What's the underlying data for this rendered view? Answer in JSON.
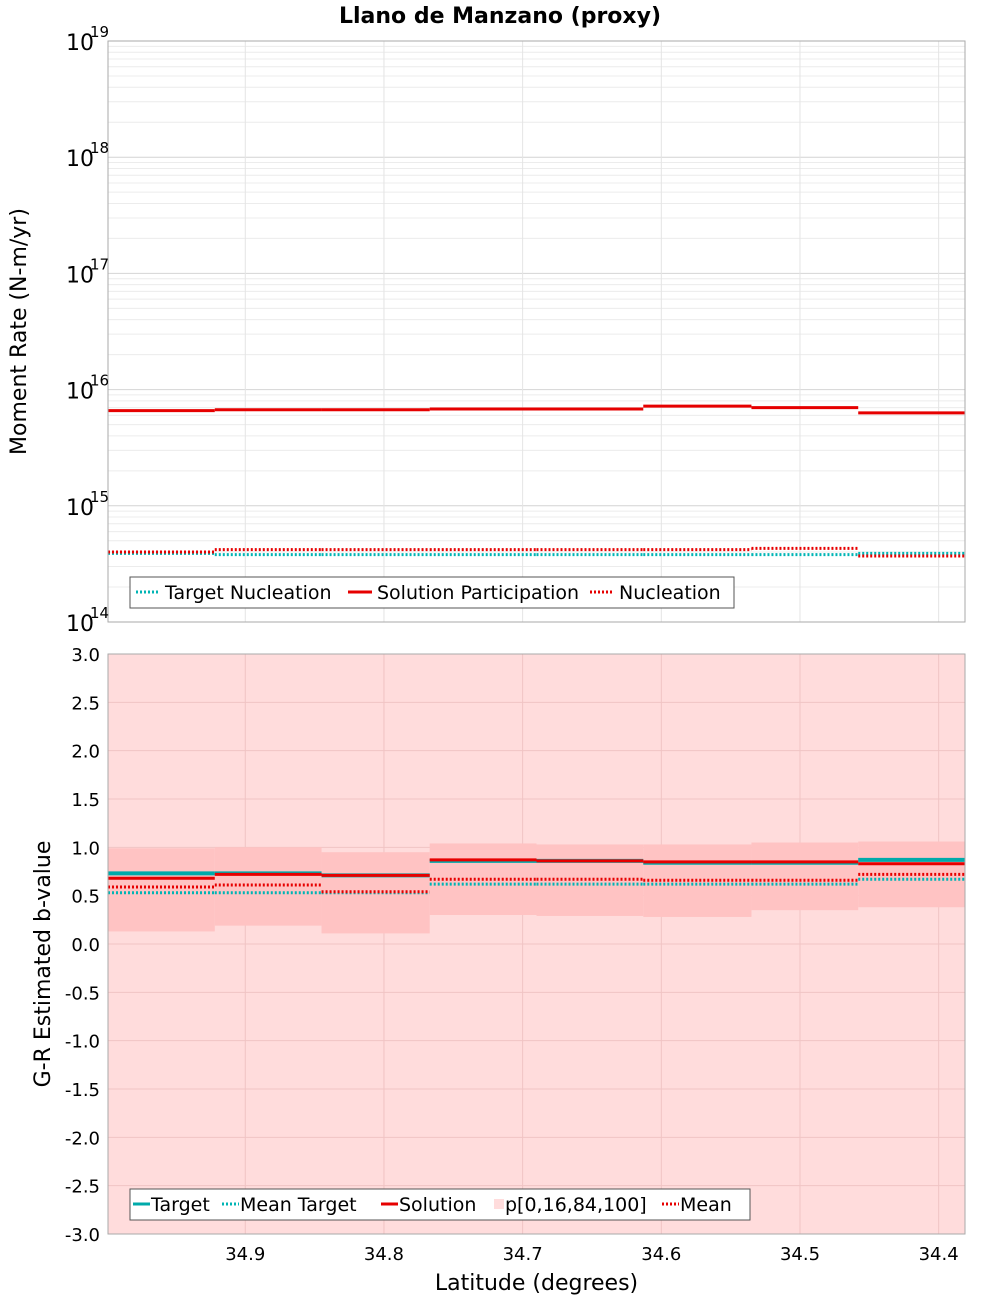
{
  "chart_data": {
    "title": "Llano de Manzano (proxy)",
    "xlabel": "Latitude (degrees)",
    "xlim": [
      34.999,
      34.381
    ],
    "x_ticks": [
      "34.9",
      "34.8",
      "34.7",
      "34.6",
      "34.5",
      "34.4"
    ],
    "x_tick_values": [
      34.9,
      34.8,
      34.7,
      34.6,
      34.5,
      34.4
    ],
    "bins": [
      34.999,
      34.922,
      34.845,
      34.767,
      34.69,
      34.613,
      34.535,
      34.458,
      34.381
    ],
    "panels": [
      {
        "type": "line",
        "ylabel": "Moment Rate (N-m/yr)",
        "yscale": "log",
        "ylim": [
          100000000000000.0,
          1e+19
        ],
        "y_tick_base": "10",
        "y_tick_exponents": [
          "14",
          "15",
          "16",
          "17",
          "18",
          "19"
        ],
        "grid": true,
        "legend_position": "bottom-left",
        "legend": [
          "Target Nucleation",
          "Solution Participation",
          "Nucleation"
        ],
        "series": [
          {
            "name": "Target Nucleation",
            "color": "#00b4b4",
            "style": "dotted",
            "values": [
              390000000000000.0,
              380000000000000.0,
              380000000000000.0,
              380000000000000.0,
              380000000000000.0,
              380000000000000.0,
              380000000000000.0,
              390000000000000.0
            ]
          },
          {
            "name": "Solution Participation",
            "color": "#e60000",
            "style": "solid",
            "values": [
              6600000000000000.0,
              6700000000000000.0,
              6700000000000000.0,
              6800000000000000.0,
              6800000000000000.0,
              7200000000000000.0,
              7000000000000000.0,
              6300000000000000.0
            ]
          },
          {
            "name": "Nucleation",
            "color": "#e60000",
            "style": "dotted",
            "values": [
              400000000000000.0,
              420000000000000.0,
              420000000000000.0,
              420000000000000.0,
              420000000000000.0,
              420000000000000.0,
              430000000000000.0,
              370000000000000.0
            ]
          }
        ]
      },
      {
        "type": "line",
        "ylabel": "G-R Estimated b-value",
        "ylim": [
          -3.0,
          3.0
        ],
        "y_ticks": [
          "3.0",
          "2.5",
          "2.0",
          "1.5",
          "1.0",
          "0.5",
          "0.0",
          "-0.5",
          "-1.0",
          "-1.5",
          "-2.0",
          "-2.5",
          "-3.0"
        ],
        "y_tick_values": [
          3.0,
          2.5,
          2.0,
          1.5,
          1.0,
          0.5,
          0.0,
          -0.5,
          -1.0,
          -1.5,
          -2.0,
          -2.5,
          -3.0
        ],
        "grid": true,
        "legend_position": "bottom-left",
        "legend": [
          "Target",
          "Mean Target",
          "Solution",
          "p[0,16,84,100]",
          "Mean"
        ],
        "band_outer": {
          "name": "p[0,16,84,100]",
          "color": "#ffdcdc",
          "low": -3.0,
          "high": 3.0
        },
        "band_inner": {
          "color": "#ffc3c3",
          "low": [
            0.13,
            0.19,
            0.11,
            0.3,
            0.29,
            0.28,
            0.35,
            0.38
          ],
          "high": [
            0.99,
            1.0,
            0.95,
            1.04,
            1.03,
            1.03,
            1.05,
            1.06
          ]
        },
        "series": [
          {
            "name": "Target",
            "color": "#00aaaa",
            "style": "solid",
            "values": [
              0.73,
              0.73,
              0.71,
              0.86,
              0.86,
              0.84,
              0.84,
              0.87
            ]
          },
          {
            "name": "Mean Target",
            "color": "#00b4b4",
            "style": "dotted",
            "values": [
              0.53,
              0.53,
              0.53,
              0.62,
              0.62,
              0.62,
              0.62,
              0.67
            ]
          },
          {
            "name": "Solution",
            "color": "#e60000",
            "style": "solid",
            "values": [
              0.68,
              0.72,
              0.71,
              0.87,
              0.86,
              0.85,
              0.85,
              0.83
            ]
          },
          {
            "name": "Mean",
            "color": "#e60000",
            "style": "dotted",
            "values": [
              0.59,
              0.61,
              0.54,
              0.67,
              0.67,
              0.66,
              0.66,
              0.72
            ]
          }
        ]
      }
    ]
  }
}
